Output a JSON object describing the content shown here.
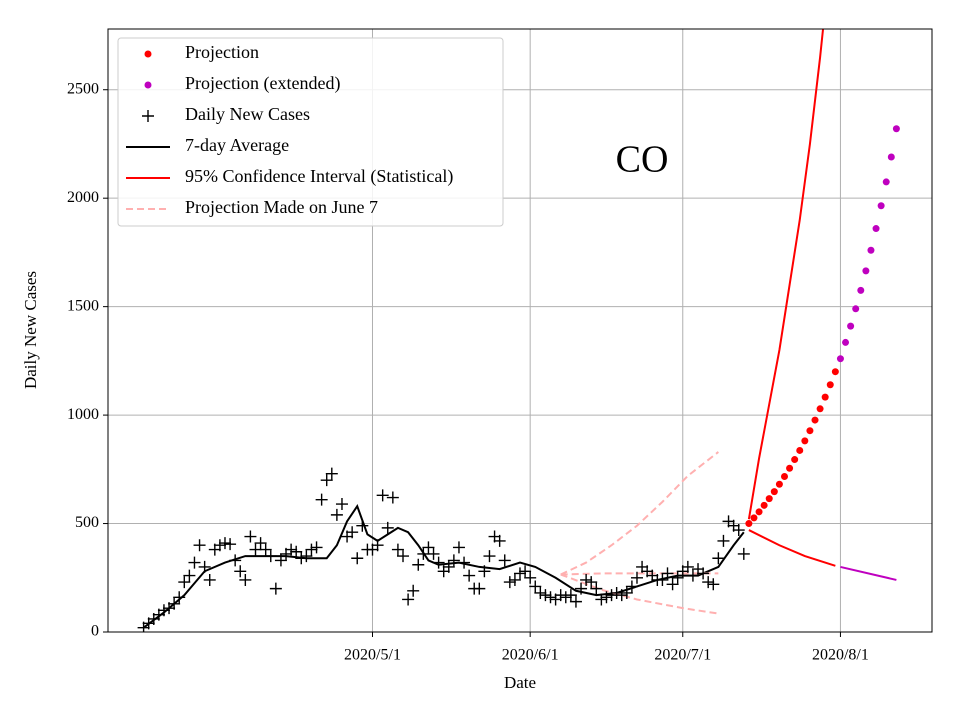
{
  "chart_data": {
    "type": "line",
    "xlabel": "Date",
    "ylabel": "Daily New Cases",
    "annotation": {
      "text": "CO",
      "x": "2020-06-23",
      "y": 2164
    },
    "xlim": [
      "2020-03-10",
      "2020-08-19"
    ],
    "xticks": [
      {
        "value": "2020-05-01",
        "label": "2020/5/1"
      },
      {
        "value": "2020-06-01",
        "label": "2020/6/1"
      },
      {
        "value": "2020-07-01",
        "label": "2020/7/1"
      },
      {
        "value": "2020-08-01",
        "label": "2020/8/1"
      }
    ],
    "ylim": [
      0,
      2780
    ],
    "yticks": [
      0,
      500,
      1000,
      1500,
      2000,
      2500
    ],
    "grid": true,
    "legend": "upper left",
    "series": [
      {
        "name": "Projection",
        "type": "scatter",
        "marker": "dot",
        "color": "#ff0000",
        "x": [
          "2020-07-14",
          "2020-07-15",
          "2020-07-16",
          "2020-07-17",
          "2020-07-18",
          "2020-07-19",
          "2020-07-20",
          "2020-07-21",
          "2020-07-22",
          "2020-07-23",
          "2020-07-24",
          "2020-07-25",
          "2020-07-26",
          "2020-07-27",
          "2020-07-28",
          "2020-07-29",
          "2020-07-30",
          "2020-07-31"
        ],
        "values": [
          500,
          526,
          554,
          584,
          615,
          647,
          681,
          717,
          755,
          795,
          837,
          881,
          928,
          977,
          1029,
          1083,
          1140,
          1200
        ]
      },
      {
        "name": "Projection (extended)",
        "type": "scatter",
        "marker": "dot",
        "color": "#bf00bf",
        "x": [
          "2020-08-01",
          "2020-08-02",
          "2020-08-03",
          "2020-08-04",
          "2020-08-05",
          "2020-08-06",
          "2020-08-07",
          "2020-08-08",
          "2020-08-09",
          "2020-08-10",
          "2020-08-11",
          "2020-08-12"
        ],
        "values": [
          1260,
          1335,
          1410,
          1490,
          1575,
          1665,
          1760,
          1860,
          1965,
          2075,
          2190,
          2320
        ]
      },
      {
        "name": "Daily New Cases",
        "type": "scatter",
        "marker": "plus",
        "color": "#000000",
        "x": [
          "2020-03-17",
          "2020-03-18",
          "2020-03-19",
          "2020-03-20",
          "2020-03-21",
          "2020-03-22",
          "2020-03-23",
          "2020-03-24",
          "2020-03-25",
          "2020-03-26",
          "2020-03-27",
          "2020-03-28",
          "2020-03-29",
          "2020-03-30",
          "2020-03-31",
          "2020-04-01",
          "2020-04-02",
          "2020-04-03",
          "2020-04-04",
          "2020-04-05",
          "2020-04-06",
          "2020-04-07",
          "2020-04-08",
          "2020-04-09",
          "2020-04-10",
          "2020-04-11",
          "2020-04-12",
          "2020-04-13",
          "2020-04-14",
          "2020-04-15",
          "2020-04-16",
          "2020-04-17",
          "2020-04-18",
          "2020-04-19",
          "2020-04-20",
          "2020-04-21",
          "2020-04-22",
          "2020-04-23",
          "2020-04-24",
          "2020-04-25",
          "2020-04-26",
          "2020-04-27",
          "2020-04-28",
          "2020-04-29",
          "2020-04-30",
          "2020-05-01",
          "2020-05-02",
          "2020-05-03",
          "2020-05-04",
          "2020-05-05",
          "2020-05-06",
          "2020-05-07",
          "2020-05-08",
          "2020-05-09",
          "2020-05-10",
          "2020-05-11",
          "2020-05-12",
          "2020-05-13",
          "2020-05-14",
          "2020-05-15",
          "2020-05-16",
          "2020-05-17",
          "2020-05-18",
          "2020-05-19",
          "2020-05-20",
          "2020-05-21",
          "2020-05-22",
          "2020-05-23",
          "2020-05-24",
          "2020-05-25",
          "2020-05-26",
          "2020-05-27",
          "2020-05-28",
          "2020-05-29",
          "2020-05-30",
          "2020-05-31",
          "2020-06-01",
          "2020-06-02",
          "2020-06-03",
          "2020-06-04",
          "2020-06-05",
          "2020-06-06",
          "2020-06-07",
          "2020-06-08",
          "2020-06-09",
          "2020-06-10",
          "2020-06-11",
          "2020-06-12",
          "2020-06-13",
          "2020-06-14",
          "2020-06-15",
          "2020-06-16",
          "2020-06-17",
          "2020-06-18",
          "2020-06-19",
          "2020-06-20",
          "2020-06-21",
          "2020-06-22",
          "2020-06-23",
          "2020-06-24",
          "2020-06-25",
          "2020-06-26",
          "2020-06-27",
          "2020-06-28",
          "2020-06-29",
          "2020-06-30",
          "2020-07-01",
          "2020-07-02",
          "2020-07-03",
          "2020-07-04",
          "2020-07-05",
          "2020-07-06",
          "2020-07-07",
          "2020-07-08",
          "2020-07-09",
          "2020-07-10",
          "2020-07-11",
          "2020-07-12",
          "2020-07-13"
        ],
        "values": [
          20,
          40,
          60,
          80,
          100,
          110,
          130,
          160,
          230,
          260,
          320,
          400,
          300,
          240,
          380,
          400,
          410,
          405,
          330,
          280,
          240,
          440,
          380,
          410,
          380,
          350,
          200,
          330,
          360,
          380,
          370,
          340,
          350,
          380,
          390,
          610,
          700,
          730,
          540,
          590,
          440,
          460,
          340,
          490,
          380,
          380,
          400,
          630,
          480,
          620,
          380,
          350,
          150,
          190,
          310,
          360,
          390,
          360,
          320,
          280,
          300,
          330,
          390,
          320,
          260,
          200,
          200,
          280,
          350,
          440,
          420,
          330,
          230,
          240,
          270,
          280,
          250,
          210,
          180,
          170,
          160,
          150,
          170,
          160,
          170,
          140,
          200,
          240,
          230,
          200,
          150,
          160,
          170,
          180,
          170,
          180,
          210,
          250,
          300,
          280,
          260,
          240,
          240,
          270,
          220,
          250,
          280,
          300,
          260,
          290,
          270,
          230,
          220,
          340,
          420,
          510,
          490,
          470,
          360
        ]
      },
      {
        "name": "7-day Average",
        "type": "line",
        "color": "#000000",
        "x": [
          "2020-03-17",
          "2020-03-21",
          "2020-03-25",
          "2020-03-29",
          "2020-04-02",
          "2020-04-06",
          "2020-04-10",
          "2020-04-14",
          "2020-04-18",
          "2020-04-22",
          "2020-04-24",
          "2020-04-26",
          "2020-04-28",
          "2020-04-30",
          "2020-05-02",
          "2020-05-04",
          "2020-05-06",
          "2020-05-08",
          "2020-05-10",
          "2020-05-12",
          "2020-05-14",
          "2020-05-18",
          "2020-05-22",
          "2020-05-26",
          "2020-05-30",
          "2020-06-02",
          "2020-06-06",
          "2020-06-10",
          "2020-06-14",
          "2020-06-18",
          "2020-06-22",
          "2020-06-26",
          "2020-06-30",
          "2020-07-04",
          "2020-07-08",
          "2020-07-11",
          "2020-07-13"
        ],
        "values": [
          20,
          90,
          170,
          280,
          320,
          350,
          350,
          350,
          340,
          340,
          400,
          510,
          580,
          450,
          420,
          450,
          480,
          460,
          400,
          330,
          310,
          320,
          300,
          290,
          320,
          300,
          250,
          190,
          170,
          180,
          210,
          240,
          260,
          260,
          300,
          400,
          460
        ]
      },
      {
        "name": "95% Confidence Interval (Statistical)",
        "type": "line",
        "color": "#ff0000",
        "x": [
          "2020-07-14",
          "2020-07-16",
          "2020-07-18",
          "2020-07-20",
          "2020-07-22",
          "2020-07-24",
          "2020-07-26",
          "2020-07-28",
          "2020-07-30"
        ],
        "values": [
          520,
          800,
          1050,
          1300,
          1600,
          1900,
          2250,
          2650,
          3100
        ]
      },
      {
        "type": "line",
        "color": "#ff0000",
        "x": [
          "2020-07-14",
          "2020-07-20",
          "2020-07-25",
          "2020-07-31"
        ],
        "values": [
          470,
          400,
          350,
          305
        ]
      },
      {
        "type": "line",
        "color": "#bf00bf",
        "x": [
          "2020-08-01",
          "2020-08-12"
        ],
        "values": [
          300,
          240
        ]
      },
      {
        "name": "Projection Made on June 7",
        "type": "line",
        "dash": true,
        "color": "#ffb0b0",
        "x": [
          "2020-06-07",
          "2020-06-12",
          "2020-06-17",
          "2020-06-22",
          "2020-06-27",
          "2020-07-02",
          "2020-07-08"
        ],
        "values": [
          265,
          320,
          400,
          490,
          600,
          720,
          830
        ]
      },
      {
        "type": "line",
        "dash": true,
        "color": "#ffb0b0",
        "x": [
          "2020-06-07",
          "2020-06-15",
          "2020-07-08"
        ],
        "values": [
          265,
          270,
          270
        ]
      },
      {
        "type": "line",
        "dash": true,
        "color": "#ffb0b0",
        "x": [
          "2020-06-07",
          "2020-06-15",
          "2020-06-22",
          "2020-07-01",
          "2020-07-08"
        ],
        "values": [
          265,
          195,
          150,
          110,
          85
        ]
      }
    ]
  }
}
